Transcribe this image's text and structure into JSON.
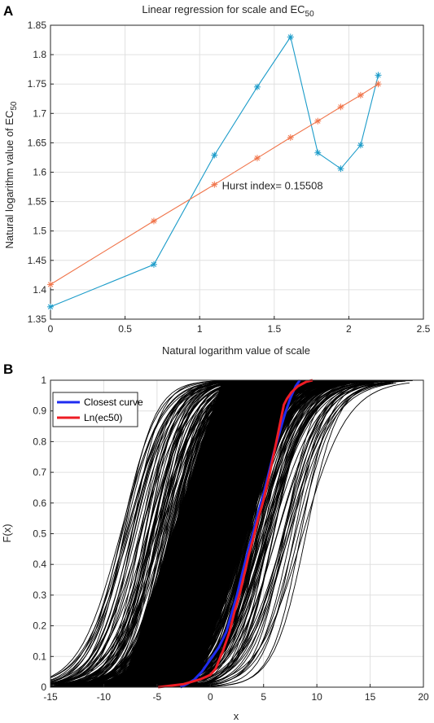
{
  "chart_data": [
    {
      "panel_label": "A",
      "type": "line",
      "title_main": "Linear regression for scale and EC",
      "title_sub": "50",
      "xlabel": "Natural logarithm value of scale",
      "ylabel_main": "Natural logarithm value of EC",
      "ylabel_sub": "50",
      "xlim": [
        0,
        2.5
      ],
      "ylim": [
        1.35,
        1.85
      ],
      "xticks": [
        0,
        0.5,
        1,
        1.5,
        2,
        2.5
      ],
      "xtick_labels": [
        "0",
        "0.5",
        "1",
        "1.5",
        "2",
        "2.5"
      ],
      "yticks": [
        1.35,
        1.4,
        1.45,
        1.5,
        1.55,
        1.6,
        1.65,
        1.7,
        1.75,
        1.8,
        1.85
      ],
      "ytick_labels": [
        "1.35",
        "1.4",
        "1.45",
        "1.5",
        "1.55",
        "1.6",
        "1.65",
        "1.7",
        "1.75",
        "1.8",
        "1.85"
      ],
      "grid": true,
      "annotation": {
        "text": "Hurst index= 0.15508",
        "x": 1.15,
        "y": 1.571
      },
      "series": [
        {
          "color": "#1a9bc9",
          "marker": "*",
          "x": [
            0,
            0.693,
            1.099,
            1.386,
            1.609,
            1.792,
            1.946,
            2.079,
            2.197
          ],
          "y": [
            1.371,
            1.443,
            1.629,
            1.745,
            1.83,
            1.633,
            1.606,
            1.646,
            1.765
          ]
        },
        {
          "color": "#f0744a",
          "marker": "*",
          "x": [
            0,
            0.693,
            1.099,
            1.386,
            1.609,
            1.792,
            1.946,
            2.079,
            2.197
          ],
          "y": [
            1.409,
            1.517,
            1.579,
            1.624,
            1.659,
            1.687,
            1.711,
            1.731,
            1.75
          ]
        }
      ]
    },
    {
      "panel_label": "B",
      "type": "line",
      "xlabel": "x",
      "ylabel": "F(x)",
      "xlim": [
        -15,
        20
      ],
      "ylim": [
        0,
        1
      ],
      "xticks": [
        -15,
        -10,
        -5,
        0,
        5,
        10,
        15,
        20
      ],
      "xtick_labels": [
        "-15",
        "-10",
        "-5",
        "0",
        "5",
        "10",
        "15",
        "20"
      ],
      "yticks": [
        0,
        0.1,
        0.2,
        0.3,
        0.4,
        0.5,
        0.6,
        0.7,
        0.8,
        0.9,
        1
      ],
      "ytick_labels": [
        "0",
        "0.1",
        "0.2",
        "0.3",
        "0.4",
        "0.5",
        "0.6",
        "0.7",
        "0.8",
        "0.9",
        "1"
      ],
      "grid": true,
      "legend": {
        "placement": "top-left",
        "entries": [
          "Closest curve",
          "Ln(ec50)"
        ]
      },
      "background_ensemble": {
        "color": "#000000",
        "median_range": [
          -9,
          9
        ]
      },
      "series": [
        {
          "name": "Closest curve",
          "color": "#1f2cf0",
          "x": [
            -2.8,
            -2.2,
            -1.5,
            -0.8,
            0,
            0.8,
            1.5,
            2.0,
            2.5,
            3.0,
            3.5,
            4.0,
            4.5,
            5.0,
            5.5,
            6.0,
            6.5,
            7.0,
            7.5,
            8.0,
            8.4
          ],
          "y": [
            0.0,
            0.01,
            0.025,
            0.05,
            0.09,
            0.13,
            0.18,
            0.24,
            0.3,
            0.37,
            0.44,
            0.5,
            0.57,
            0.63,
            0.7,
            0.77,
            0.83,
            0.89,
            0.94,
            0.98,
            1.0
          ]
        },
        {
          "name": "Ln(ec50)",
          "color": "#ee1c24",
          "x": [
            -4.9,
            -2.5,
            -1.0,
            0.0,
            0.5,
            1.2,
            1.8,
            2.3,
            2.8,
            3.2,
            3.6,
            4.0,
            4.5,
            5.0,
            5.6,
            6.2,
            6.9,
            7.2,
            7.6,
            8.2,
            9.0,
            9.6
          ],
          "y": [
            0.0,
            0.01,
            0.025,
            0.04,
            0.06,
            0.12,
            0.18,
            0.25,
            0.31,
            0.37,
            0.43,
            0.48,
            0.55,
            0.61,
            0.7,
            0.8,
            0.92,
            0.94,
            0.96,
            0.98,
            0.995,
            1.0
          ]
        }
      ]
    }
  ]
}
